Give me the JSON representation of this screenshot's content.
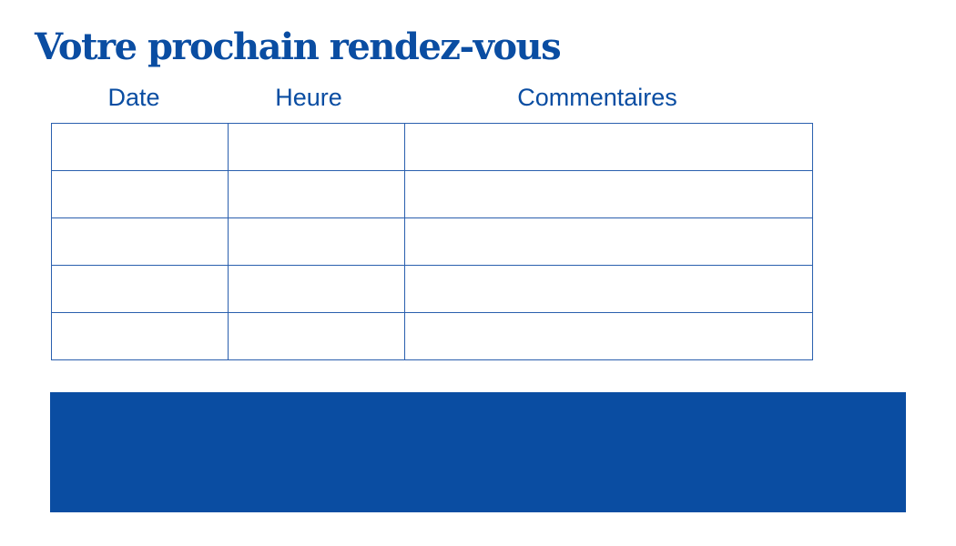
{
  "title": "Votre prochain rendez-vous",
  "table": {
    "columns": [
      "Date",
      "Heure",
      "Commentaires"
    ],
    "rows": [
      [
        "",
        "",
        ""
      ],
      [
        "",
        "",
        ""
      ],
      [
        "",
        "",
        ""
      ],
      [
        "",
        "",
        ""
      ],
      [
        "",
        "",
        ""
      ]
    ]
  },
  "colors": {
    "brand_blue": "#0a4da2"
  }
}
